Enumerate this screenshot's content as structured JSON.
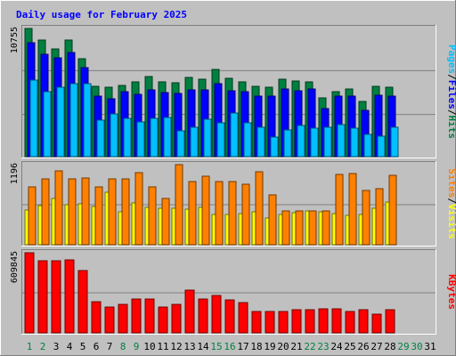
{
  "chart_data": [
    {
      "type": "bar",
      "panel": "hits",
      "title": "Daily usage for February 2025",
      "ytick": "10755",
      "ymax": 10755,
      "legend": [
        {
          "label": "Pages",
          "color": "#00c0ff"
        },
        {
          "label": "Files",
          "color": "#0000ff"
        },
        {
          "label": "Hits",
          "color": "#008040"
        }
      ],
      "separator": "/",
      "x": [
        1,
        2,
        3,
        4,
        5,
        6,
        7,
        8,
        9,
        10,
        11,
        12,
        13,
        14,
        15,
        16,
        17,
        18,
        19,
        20,
        21,
        22,
        23,
        24,
        25,
        26,
        27,
        28
      ],
      "series": [
        {
          "name": "Hits",
          "values": [
            10755,
            9800,
            9050,
            9800,
            8250,
            5900,
            5850,
            5950,
            6250,
            6700,
            6250,
            6200,
            6650,
            6500,
            7300,
            6550,
            6250,
            5900,
            5850,
            6500,
            6350,
            6250,
            4900,
            5450,
            5650,
            4650,
            5900,
            5850
          ]
        },
        {
          "name": "Files",
          "values": [
            9550,
            8600,
            8300,
            8750,
            7450,
            5100,
            4850,
            5450,
            5250,
            5600,
            5400,
            5300,
            5600,
            5600,
            6100,
            5500,
            5450,
            5050,
            5100,
            5650,
            5550,
            5700,
            4050,
            5050,
            5050,
            3850,
            5150,
            5050
          ]
        },
        {
          "name": "Pages",
          "values": [
            6450,
            5450,
            5850,
            6100,
            6100,
            3050,
            3600,
            3200,
            2950,
            3200,
            3250,
            2150,
            2450,
            3150,
            2850,
            3650,
            2850,
            2500,
            1650,
            2250,
            2650,
            2400,
            2450,
            2700,
            2400,
            1900,
            1700,
            2450
          ]
        }
      ]
    },
    {
      "type": "bar",
      "panel": "visits",
      "ytick": "1196",
      "ymax": 1196,
      "legend": [
        {
          "label": "Sites",
          "color": "#ff8000"
        },
        {
          "label": "Visits",
          "color": "#ffff00"
        }
      ],
      "separator": "/",
      "x": [
        1,
        2,
        3,
        4,
        5,
        6,
        7,
        8,
        9,
        10,
        11,
        12,
        13,
        14,
        15,
        16,
        17,
        18,
        19,
        20,
        21,
        22,
        23,
        24,
        25,
        26,
        27,
        28
      ],
      "series": [
        {
          "name": "Visits",
          "values": [
            520,
            580,
            690,
            600,
            610,
            570,
            780,
            490,
            620,
            560,
            540,
            540,
            530,
            560,
            450,
            450,
            470,
            490,
            400,
            450,
            480,
            500,
            490,
            460,
            440,
            450,
            540,
            640
          ]
        },
        {
          "name": "Sites",
          "values": [
            870,
            990,
            1100,
            990,
            1000,
            870,
            980,
            990,
            1070,
            860,
            690,
            1196,
            940,
            1020,
            940,
            940,
            900,
            1085,
            740,
            510,
            510,
            500,
            500,
            1045,
            1060,
            810,
            840,
            1030
          ]
        }
      ]
    },
    {
      "type": "bar",
      "panel": "kbytes",
      "ytick": "609845",
      "ymax": 609845,
      "legend": [
        {
          "label": "KBytes",
          "color": "#ff0000"
        }
      ],
      "x": [
        1,
        2,
        3,
        4,
        5,
        6,
        7,
        8,
        9,
        10,
        11,
        12,
        13,
        14,
        15,
        16,
        17,
        18,
        19,
        20,
        21,
        22,
        23,
        24,
        25,
        26,
        27,
        28
      ],
      "series": [
        {
          "name": "KBytes",
          "values": [
            609845,
            551000,
            551000,
            557000,
            476000,
            239000,
            199000,
            219000,
            255000,
            255000,
            199000,
            219000,
            322000,
            260000,
            282000,
            248000,
            230000,
            165000,
            165000,
            165000,
            175000,
            175000,
            182000,
            182000,
            165000,
            175000,
            145000,
            175000
          ]
        }
      ]
    }
  ],
  "day_labels": [
    "1",
    "2",
    "3",
    "4",
    "5",
    "6",
    "7",
    "8",
    "9",
    "10",
    "11",
    "12",
    "13",
    "14",
    "15",
    "16",
    "17",
    "18",
    "19",
    "20",
    "21",
    "22",
    "23",
    "24",
    "25",
    "26",
    "27",
    "28",
    "29",
    "30",
    "31"
  ],
  "weekend_days": [
    1,
    2,
    8,
    9,
    15,
    16,
    22,
    23,
    29,
    30
  ],
  "colors": {
    "weekday": "#000000",
    "weekend": "#008040"
  }
}
